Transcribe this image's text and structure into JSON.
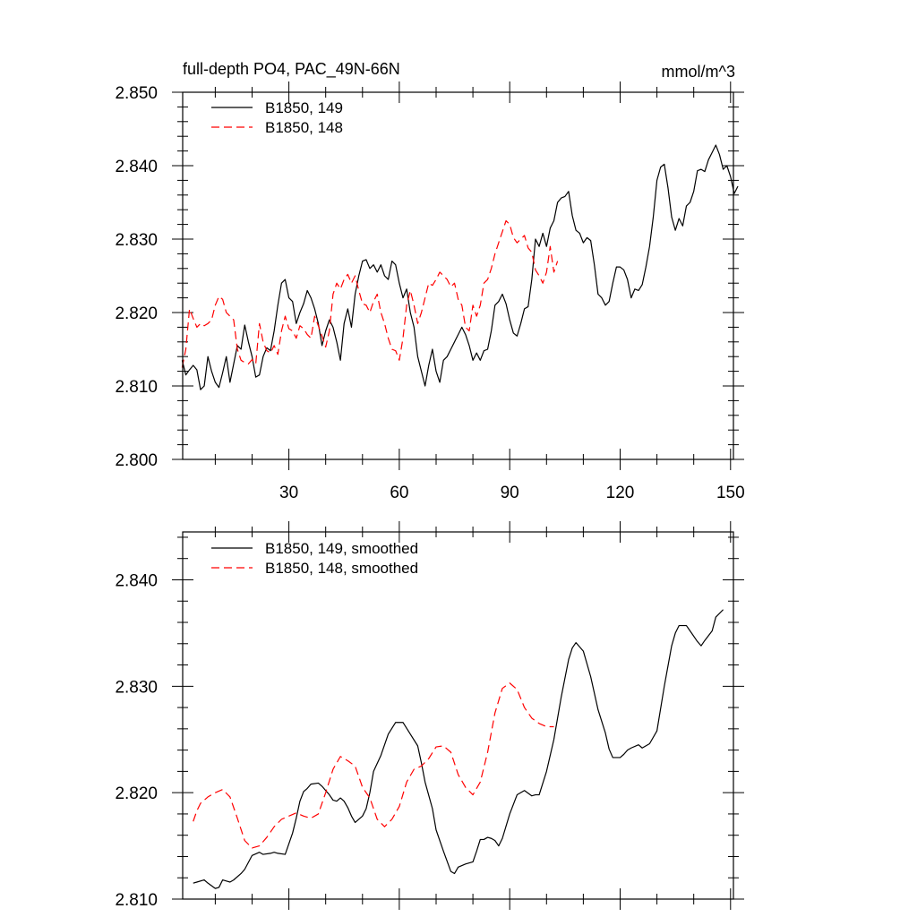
{
  "chart_data": [
    {
      "type": "line",
      "title": "full-depth PO4, PAC_49N-66N",
      "units": "mmol/m^3",
      "xlabel": "",
      "ylabel": "",
      "xlim": [
        1,
        151
      ],
      "ylim": [
        2.8,
        2.85
      ],
      "xticks": [
        30,
        60,
        90,
        120,
        150
      ],
      "xtick_labels": [
        "30",
        "60",
        "90",
        "120",
        "150"
      ],
      "yticks": [
        2.8,
        2.81,
        2.82,
        2.83,
        2.84,
        2.85
      ],
      "ytick_labels": [
        "2.800",
        "2.810",
        "2.820",
        "2.830",
        "2.840",
        "2.850"
      ],
      "legend_position": "top-left",
      "series": [
        {
          "name": "B1850, 149",
          "color": "#000000",
          "style": "solid",
          "x_start": 1,
          "values": [
            2.8135,
            2.8115,
            2.8122,
            2.8128,
            2.8122,
            2.8095,
            2.81,
            2.814,
            2.812,
            2.8105,
            2.8098,
            2.8118,
            2.814,
            2.8105,
            2.813,
            2.8155,
            2.815,
            2.8183,
            2.816,
            2.814,
            2.8112,
            2.8115,
            2.814,
            2.8152,
            2.8148,
            2.8175,
            2.821,
            2.824,
            2.8245,
            2.822,
            2.8215,
            2.8185,
            2.82,
            2.8212,
            2.823,
            2.822,
            2.8205,
            2.8185,
            2.8155,
            2.8175,
            2.819,
            2.818,
            2.816,
            2.8135,
            2.8185,
            2.8205,
            2.818,
            2.8225,
            2.825,
            2.827,
            2.8272,
            2.826,
            2.8265,
            2.8255,
            2.8265,
            2.825,
            2.8245,
            2.827,
            2.8265,
            2.824,
            2.822,
            2.8232,
            2.82,
            2.818,
            2.814,
            2.812,
            2.81,
            2.8128,
            2.815,
            2.812,
            2.8105,
            2.8135,
            2.814,
            2.815,
            2.816,
            2.817,
            2.818,
            2.817,
            2.8155,
            2.8135,
            2.8145,
            2.8135,
            2.8148,
            2.815,
            2.8175,
            2.821,
            2.8215,
            2.8225,
            2.8212,
            2.819,
            2.8172,
            2.8168,
            2.8185,
            2.8205,
            2.8208,
            2.8245,
            2.83,
            2.829,
            2.8308,
            2.829,
            2.8315,
            2.8325,
            2.835,
            2.8356,
            2.8358,
            2.8365,
            2.8332,
            2.8312,
            2.8308,
            2.8295,
            2.8302,
            2.8298,
            2.8265,
            2.8225,
            2.822,
            2.821,
            2.8215,
            2.824,
            2.8262,
            2.8262,
            2.8258,
            2.8245,
            2.822,
            2.8232,
            2.823,
            2.8238,
            2.8262,
            2.829,
            2.833,
            2.838,
            2.8398,
            2.8402,
            2.837,
            2.833,
            2.8312,
            2.8328,
            2.8318,
            2.8345,
            2.835,
            2.8365,
            2.8393,
            2.8395,
            2.8392,
            2.8408,
            2.8418,
            2.8428,
            2.8415,
            2.8395,
            2.84,
            2.8385,
            2.8362,
            2.8372
          ]
        },
        {
          "name": "B1850, 148",
          "color": "#ff0000",
          "style": "dashed",
          "x_start": 1,
          "values": [
            2.8125,
            2.815,
            2.8205,
            2.8192,
            2.818,
            2.8185,
            2.8182,
            2.8185,
            2.819,
            2.821,
            2.8222,
            2.8218,
            2.82,
            2.8195,
            2.819,
            2.815,
            2.8135,
            2.8132,
            2.813,
            2.8136,
            2.813,
            2.8185,
            2.816,
            2.8148,
            2.8145,
            2.8155,
            2.8143,
            2.8175,
            2.8195,
            2.8178,
            2.8175,
            2.8165,
            2.8182,
            2.8178,
            2.817,
            2.8165,
            2.8195,
            2.8182,
            2.8168,
            2.8153,
            2.8175,
            2.8225,
            2.824,
            2.8232,
            2.8245,
            2.8252,
            2.824,
            2.825,
            2.823,
            2.8212,
            2.821,
            2.82,
            2.8215,
            2.8225,
            2.82,
            2.8185,
            2.8165,
            2.815,
            2.8148,
            2.8135,
            2.8165,
            2.821,
            2.823,
            2.821,
            2.8185,
            2.82,
            2.822,
            2.824,
            2.8237,
            2.8245,
            2.8255,
            2.825,
            2.8245,
            2.8235,
            2.824,
            2.8218,
            2.821,
            2.818,
            2.8175,
            2.821,
            2.8195,
            2.821,
            2.824,
            2.8245,
            2.826,
            2.828,
            2.8295,
            2.831,
            2.8325,
            2.832,
            2.8302,
            2.8295,
            2.83,
            2.8305,
            2.8288,
            2.8282,
            2.8258,
            2.825,
            2.824,
            2.8255,
            2.829,
            2.8255,
            2.827
          ]
        }
      ]
    },
    {
      "type": "line",
      "title": "",
      "xlabel": "",
      "ylabel": "",
      "xlim": [
        1,
        151
      ],
      "ylim": [
        2.81,
        2.8445
      ],
      "xticks": [
        30,
        60,
        90,
        120,
        150
      ],
      "xtick_labels": [],
      "yticks": [
        2.81,
        2.82,
        2.83,
        2.84
      ],
      "ytick_labels": [
        "2.810",
        "2.820",
        "2.830",
        "2.840"
      ],
      "legend_position": "top-left",
      "series": [
        {
          "name": "B1850, 149, smoothed",
          "color": "#000000",
          "style": "solid",
          "x": [
            4,
            5,
            7,
            8,
            10,
            11,
            12,
            13,
            14,
            15,
            17,
            18,
            20,
            22,
            23,
            25,
            26,
            27,
            29,
            30,
            31,
            32,
            33,
            34,
            35,
            36,
            38,
            39,
            40,
            41,
            42,
            43,
            44,
            45,
            46,
            47,
            48,
            50,
            51,
            52,
            53,
            55,
            57,
            59,
            61,
            63,
            65,
            66,
            67,
            69,
            70,
            72,
            74,
            75,
            76,
            78,
            80,
            81,
            82,
            83,
            84,
            85,
            86,
            87,
            88,
            90,
            92,
            94,
            96,
            97,
            98,
            100,
            102,
            104,
            106,
            107,
            108,
            110,
            112,
            114,
            116,
            117,
            118,
            120,
            121,
            122,
            123,
            125,
            126,
            128,
            130,
            132,
            134,
            135,
            136,
            138,
            139,
            141,
            142,
            143,
            145,
            146,
            148
          ],
          "values": [
            2.8115,
            2.8116,
            2.8118,
            2.8115,
            2.811,
            2.8111,
            2.8118,
            2.8117,
            2.8116,
            2.8118,
            2.8124,
            2.8128,
            2.8141,
            2.8144,
            2.8142,
            2.8143,
            2.8144,
            2.8143,
            2.8142,
            2.8152,
            2.8162,
            2.8176,
            2.8192,
            2.8201,
            2.8204,
            2.8208,
            2.8209,
            2.8206,
            2.8202,
            2.8198,
            2.8193,
            2.8192,
            2.8195,
            2.8192,
            2.8186,
            2.8178,
            2.8172,
            2.8178,
            2.8185,
            2.82,
            2.822,
            2.8235,
            2.8255,
            2.8266,
            2.8266,
            2.8255,
            2.8244,
            2.8228,
            2.821,
            2.8185,
            2.8165,
            2.8145,
            2.8126,
            2.8124,
            2.813,
            2.8133,
            2.8135,
            2.8145,
            2.8156,
            2.8156,
            2.8158,
            2.8157,
            2.8155,
            2.815,
            2.8157,
            2.818,
            2.8198,
            2.8202,
            2.8197,
            2.8198,
            2.8198,
            2.822,
            2.825,
            2.829,
            2.8325,
            2.8336,
            2.8341,
            2.8333,
            2.8309,
            2.8278,
            2.8256,
            2.8241,
            2.8233,
            2.8233,
            2.8236,
            2.824,
            2.8242,
            2.8245,
            2.8242,
            2.8246,
            2.8258,
            2.83,
            2.8338,
            2.835,
            2.8357,
            2.8357,
            2.8352,
            2.8342,
            2.8338,
            2.8343,
            2.8352,
            2.8365,
            2.8372
          ]
        },
        {
          "name": "B1850, 148, smoothed",
          "color": "#ff0000",
          "style": "dashed",
          "x": [
            4,
            5,
            6,
            7,
            8,
            10,
            12,
            14,
            16,
            18,
            20,
            22,
            24,
            26,
            28,
            30,
            32,
            34,
            36,
            38,
            40,
            42,
            44,
            46,
            48,
            50,
            52,
            54,
            56,
            58,
            60,
            62,
            64,
            66,
            68,
            70,
            72,
            74,
            76,
            78,
            80,
            82,
            84,
            86,
            88,
            90,
            92,
            94,
            96,
            98,
            100,
            102
          ],
          "values": [
            2.8173,
            2.8183,
            2.819,
            2.8193,
            2.8196,
            2.82,
            2.8203,
            2.8196,
            2.8176,
            2.8155,
            2.8148,
            2.815,
            2.8158,
            2.8168,
            2.8175,
            2.8178,
            2.8181,
            2.8178,
            2.8176,
            2.818,
            2.82,
            2.8222,
            2.8234,
            2.823,
            2.8225,
            2.8205,
            2.8195,
            2.8175,
            2.8168,
            2.8175,
            2.8187,
            2.821,
            2.8222,
            2.8225,
            2.8232,
            2.8243,
            2.8244,
            2.8238,
            2.8217,
            2.8205,
            2.8198,
            2.821,
            2.8238,
            2.8275,
            2.8298,
            2.8303,
            2.8297,
            2.828,
            2.827,
            2.8265,
            2.8262,
            2.8262
          ]
        }
      ]
    }
  ]
}
